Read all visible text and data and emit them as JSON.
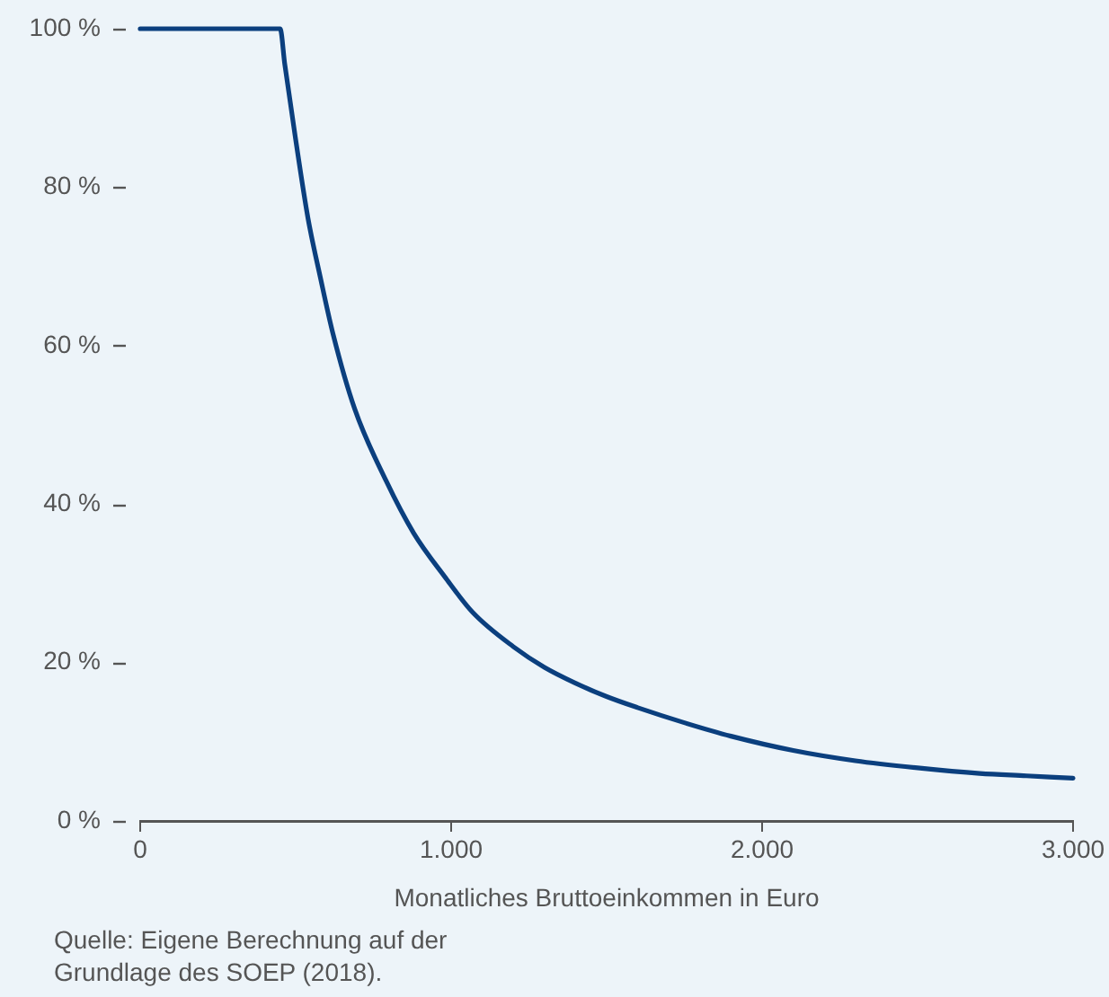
{
  "chart_data": {
    "type": "line",
    "xlabel": "Monatliches Bruttoeinkommen in Euro",
    "annotations": [
      "Quelle: Eigene Berechnung auf der Grundlage des SOEP (2018)."
    ],
    "x": [
      0,
      450,
      465,
      500,
      540,
      580,
      620,
      690,
      790,
      880,
      980,
      1070,
      1200,
      1300,
      1400,
      1500,
      1600,
      1750,
      1900,
      2100,
      2300,
      2500,
      2700,
      2850,
      3000
    ],
    "series": [
      {
        "color": "#0b3f7e",
        "values": [
          100,
          100,
          95.5,
          86,
          76,
          68.5,
          61.5,
          52,
          43,
          36.3,
          30.8,
          26.3,
          22,
          19.4,
          17.4,
          15.7,
          14.3,
          12.4,
          10.7,
          8.9,
          7.6,
          6.7,
          6.0,
          5.7,
          5.4
        ]
      }
    ],
    "xlim": [
      0,
      3000
    ],
    "xticks": [
      0,
      {
        "value": 1000,
        "label": "1.000"
      },
      {
        "value": 2000,
        "label": "2.000"
      },
      {
        "value": 3000,
        "label": "3.000"
      }
    ],
    "ylim": [
      0,
      100
    ],
    "yticks": [
      {
        "value": 0,
        "label": "0 %"
      },
      {
        "value": 20,
        "label": "20 %"
      },
      {
        "value": 40,
        "label": "40 %"
      },
      {
        "value": 60,
        "label": "60 %"
      },
      {
        "value": 80,
        "label": "80 %"
      },
      {
        "value": 100,
        "label": "100 %"
      }
    ],
    "marker": "none",
    "line_style": "solid"
  }
}
